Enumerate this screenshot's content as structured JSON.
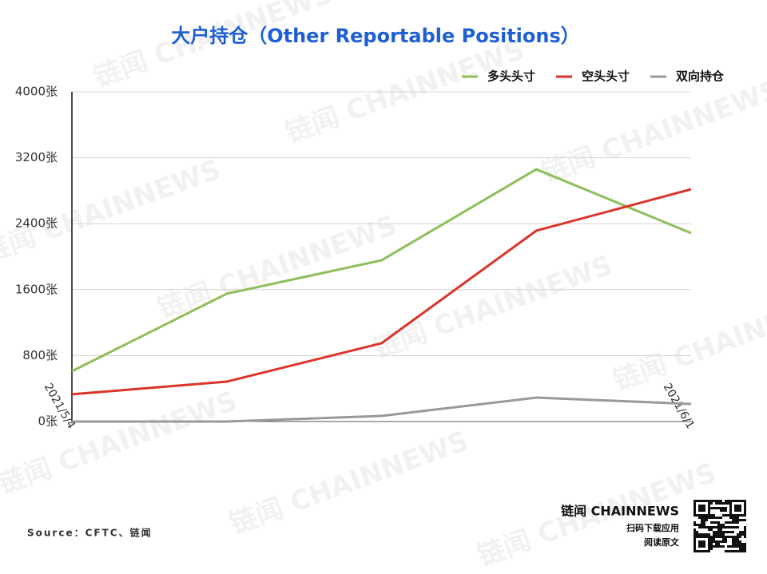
{
  "chart_data": {
    "type": "line",
    "title": "大户持仓（Other Reportable Positions）",
    "categories": [
      "2021/5/4",
      null,
      null,
      null,
      "2021/6/1"
    ],
    "series": [
      {
        "name": "多头头寸",
        "color": "#8dbf5a",
        "values": [
          610,
          1550,
          1956,
          3060,
          2286
        ]
      },
      {
        "name": "空头头寸",
        "color": "#d9352a",
        "values": [
          330,
          484,
          950,
          2315,
          2818
        ]
      },
      {
        "name": "双向持仓",
        "color": "#999999",
        "values": [
          0,
          0,
          68,
          290,
          213
        ]
      }
    ],
    "ylim": [
      0,
      4000
    ],
    "yticks": [
      {
        "value": 0,
        "label": "0张"
      },
      {
        "value": 800,
        "label": "800张"
      },
      {
        "value": 1600,
        "label": "1600张"
      },
      {
        "value": 2400,
        "label": "2400张"
      },
      {
        "value": 3200,
        "label": "3200张"
      },
      {
        "value": 4000,
        "label": "4000张"
      }
    ],
    "grid": true,
    "legend": "top-right",
    "source": "Source：CFTC、链闻",
    "watermark": "链闻 CHAINNEWS",
    "brand": "链闻 CHAINNEWS",
    "brand_line1": "扫码下载应用",
    "brand_line2": "阅读原文"
  }
}
